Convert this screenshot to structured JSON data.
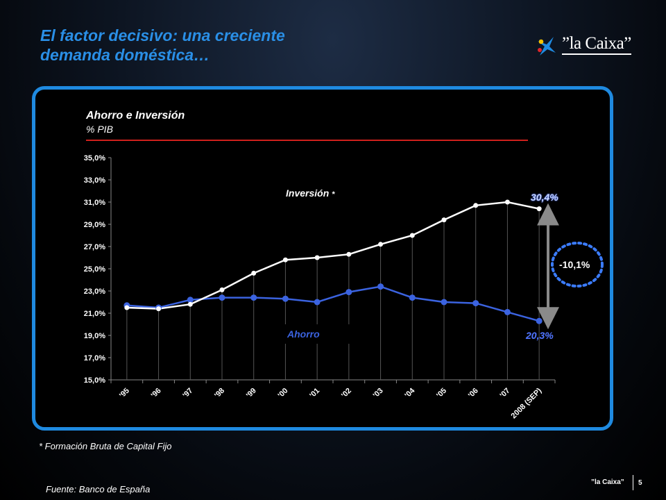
{
  "slide": {
    "title_line1": "El factor decisivo: una creciente",
    "title_line2": "demanda doméstica…",
    "logo_text": "”la Caixa”",
    "footnote": "* Formación Bruta de Capital Fijo",
    "source": "Fuente: Banco de España",
    "footer_brand": "”la Caixa”",
    "page_number": "5"
  },
  "colors": {
    "accent": "#1f8ae0",
    "title": "#2a8fe6",
    "rule": "#d0201c",
    "inversion": "#ffffff",
    "ahorro": "#3b63e0"
  },
  "chart_data": {
    "type": "line",
    "title": "Ahorro e Inversión",
    "subtitle": "% PIB",
    "categories": [
      "'95",
      "'96",
      "'97",
      "'98",
      "'99",
      "'00",
      "'01",
      "'02",
      "'03",
      "'04",
      "'05",
      "'06",
      "'07",
      "2008 (SEP)"
    ],
    "ylim": [
      15,
      35
    ],
    "yticks": [
      "15,0%",
      "17,0%",
      "19,0%",
      "21,0%",
      "23,0%",
      "25,0%",
      "27,0%",
      "29,0%",
      "31,0%",
      "33,0%",
      "35,0%"
    ],
    "series": [
      {
        "name": "Inversión",
        "label": "Inversión",
        "marker": "*",
        "values": [
          21.5,
          21.4,
          21.8,
          23.1,
          24.6,
          25.8,
          26.0,
          26.3,
          27.2,
          28.0,
          29.4,
          30.7,
          31.0,
          30.4
        ],
        "end_label": "30,4%"
      },
      {
        "name": "Ahorro",
        "label": "Ahorro",
        "values": [
          21.7,
          21.5,
          22.2,
          22.4,
          22.4,
          22.3,
          22.0,
          22.9,
          23.4,
          22.4,
          22.0,
          21.9,
          21.1,
          20.3
        ],
        "end_label": "20,3%"
      }
    ],
    "annotations": {
      "difference": "-10,1%"
    }
  }
}
